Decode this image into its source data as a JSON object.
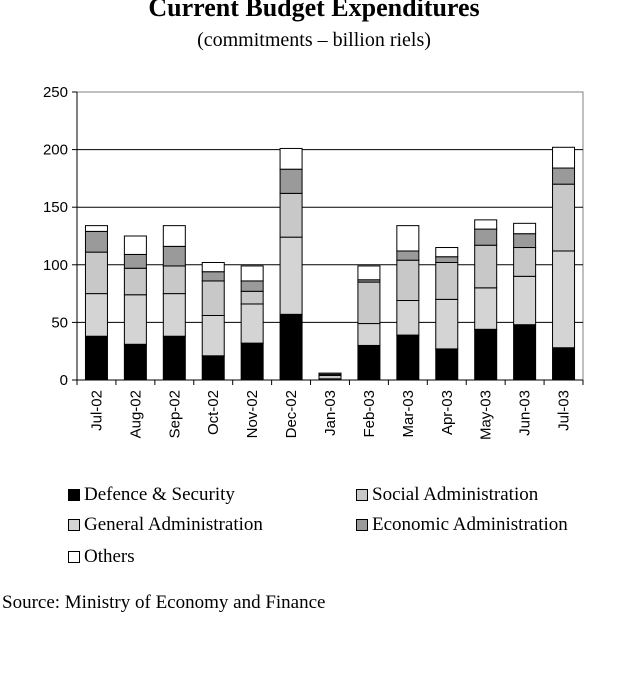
{
  "chart_data": {
    "type": "bar",
    "stacked": true,
    "title": "Current Budget Expenditures",
    "subtitle": "(commitments – billion riels)",
    "xlabel": "",
    "ylabel": "",
    "ylim": [
      0,
      250
    ],
    "yticks": [
      0,
      50,
      100,
      150,
      200,
      250
    ],
    "grid": true,
    "legend_position": "bottom",
    "categories": [
      "Jul-02",
      "Aug-02",
      "Sep-02",
      "Oct-02",
      "Nov-02",
      "Dec-02",
      "Jan-03",
      "Feb-03",
      "Mar-03",
      "Apr-03",
      "May-03",
      "Jun-03",
      "Jul-03"
    ],
    "series": [
      {
        "name": "Defence & Security",
        "color": "#000000",
        "values": [
          38,
          31,
          38,
          21,
          32,
          57,
          0,
          30,
          39,
          27,
          44,
          48,
          28
        ]
      },
      {
        "name": "General Administration",
        "color": "#d4d4d4",
        "values": [
          37,
          43,
          37,
          35,
          34,
          67,
          1,
          19,
          30,
          43,
          36,
          42,
          84
        ]
      },
      {
        "name": "Social Administration",
        "color": "#c8c8c8",
        "values": [
          36,
          23,
          24,
          30,
          11,
          38,
          3,
          36,
          35,
          32,
          37,
          25,
          58
        ]
      },
      {
        "name": "Economic Administration",
        "color": "#9a9a9a",
        "values": [
          18,
          12,
          17,
          8,
          9,
          21,
          1,
          2,
          8,
          5,
          14,
          12,
          14
        ]
      },
      {
        "name": "Others",
        "color": "#ffffff",
        "values": [
          5,
          16,
          18,
          8,
          13,
          18,
          1,
          12,
          22,
          8,
          8,
          9,
          18
        ]
      }
    ]
  },
  "legend": [
    {
      "label": "Defence & Security",
      "color": "#000000"
    },
    {
      "label": "Social Administration",
      "color": "#c8c8c8"
    },
    {
      "label": "General Administration",
      "color": "#d4d4d4"
    },
    {
      "label": "Economic Administration",
      "color": "#9a9a9a"
    },
    {
      "label": "Others",
      "color": "#ffffff"
    }
  ],
  "source": "Source: Ministry of Economy and Finance"
}
